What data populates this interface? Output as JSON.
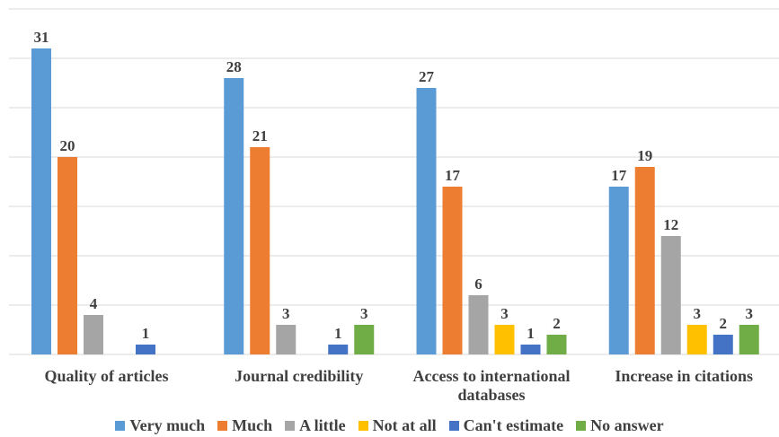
{
  "chart_data": {
    "type": "bar",
    "categories": [
      [
        "Quality of articles"
      ],
      [
        "Journal credibility"
      ],
      [
        "Access to international",
        "databases"
      ],
      [
        "Increase in citations"
      ]
    ],
    "series": [
      {
        "name": "Very much",
        "color": "#5B9BD5",
        "values": [
          31,
          28,
          27,
          17
        ]
      },
      {
        "name": "Much",
        "color": "#ED7D31",
        "values": [
          20,
          21,
          17,
          19
        ]
      },
      {
        "name": "A little",
        "color": "#A5A5A5",
        "values": [
          4,
          3,
          6,
          12
        ]
      },
      {
        "name": "Not at all",
        "color": "#FFC000",
        "values": [
          null,
          null,
          3,
          3
        ]
      },
      {
        "name": "Can't estimate",
        "color": "#4472C4",
        "values": [
          1,
          1,
          1,
          2
        ]
      },
      {
        "name": "No answer",
        "color": "#70AD47",
        "values": [
          null,
          3,
          2,
          3
        ]
      }
    ],
    "ylim": [
      0,
      35
    ],
    "grid": true,
    "legend_position": "bottom"
  }
}
